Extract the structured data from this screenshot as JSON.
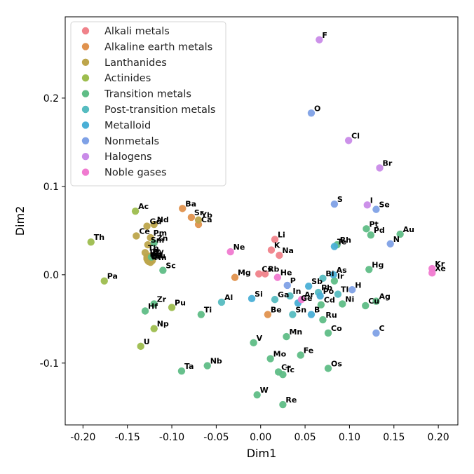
{
  "chart_data": {
    "type": "scatter",
    "xlabel": "Dim1",
    "ylabel": "Dim2",
    "xlim": [
      -0.22,
      0.222
    ],
    "ylim": [
      -0.17,
      0.292
    ],
    "xticks": [
      "-0.20",
      "-0.15",
      "-0.10",
      "-0.05",
      "0.00",
      "0.05",
      "0.10",
      "0.15",
      "0.20"
    ],
    "xtick_values": [
      -0.2,
      -0.15,
      -0.1,
      -0.05,
      0.0,
      0.05,
      0.1,
      0.15,
      0.2
    ],
    "yticks": [
      "-0.1",
      "0.0",
      "0.1",
      "0.2"
    ],
    "ytick_values": [
      -0.1,
      0.0,
      0.1,
      0.2
    ],
    "legend_position": "top-left",
    "series": [
      {
        "name": "Alkali metals",
        "color": "#f0828a",
        "points": [
          {
            "label": "Li",
            "x": 0.016,
            "y": 0.04
          },
          {
            "label": "Na",
            "x": 0.021,
            "y": 0.022
          },
          {
            "label": "K",
            "x": 0.012,
            "y": 0.028
          },
          {
            "label": "Rb",
            "x": 0.005,
            "y": 0.001
          },
          {
            "label": "Cs",
            "x": -0.002,
            "y": 0.001
          }
        ]
      },
      {
        "name": "Alkaline earth metals",
        "color": "#e0924e",
        "points": [
          {
            "label": "Be",
            "x": 0.008,
            "y": -0.045
          },
          {
            "label": "Mg",
            "x": -0.029,
            "y": -0.003
          },
          {
            "label": "Ca",
            "x": -0.07,
            "y": 0.057
          },
          {
            "label": "Sr",
            "x": -0.078,
            "y": 0.065
          },
          {
            "label": "Ba",
            "x": -0.088,
            "y": 0.075
          }
        ]
      },
      {
        "name": "Lanthanides",
        "color": "#bda54b",
        "points": [
          {
            "label": "La",
            "x": -0.127,
            "y": 0.016
          },
          {
            "label": "Ce",
            "x": -0.14,
            "y": 0.044
          },
          {
            "label": "Pr",
            "x": -0.128,
            "y": 0.02
          },
          {
            "label": "Nd",
            "x": -0.12,
            "y": 0.057
          },
          {
            "label": "Pm",
            "x": -0.124,
            "y": 0.042
          },
          {
            "label": "Sm",
            "x": -0.127,
            "y": 0.034
          },
          {
            "label": "Eu",
            "x": -0.125,
            "y": 0.018
          },
          {
            "label": "Gd",
            "x": -0.128,
            "y": 0.055
          },
          {
            "label": "Tb",
            "x": -0.13,
            "y": 0.025
          },
          {
            "label": "Dy",
            "x": -0.125,
            "y": 0.021
          },
          {
            "label": "Ho",
            "x": -0.128,
            "y": 0.018
          },
          {
            "label": "Er",
            "x": -0.126,
            "y": 0.015
          },
          {
            "label": "Tm",
            "x": -0.124,
            "y": 0.014
          },
          {
            "label": "Yb",
            "x": -0.07,
            "y": 0.062
          },
          {
            "label": "Lu",
            "x": -0.122,
            "y": 0.016
          }
        ]
      },
      {
        "name": "Actinides",
        "color": "#9dbd4e",
        "points": [
          {
            "label": "Ac",
            "x": -0.141,
            "y": 0.072
          },
          {
            "label": "Th",
            "x": -0.191,
            "y": 0.037
          },
          {
            "label": "Pa",
            "x": -0.176,
            "y": -0.007
          },
          {
            "label": "U",
            "x": -0.135,
            "y": -0.081
          },
          {
            "label": "Np",
            "x": -0.12,
            "y": -0.061
          },
          {
            "label": "Pu",
            "x": -0.1,
            "y": -0.037
          }
        ]
      },
      {
        "name": "Transition metals",
        "color": "#5fbd86",
        "points": [
          {
            "label": "Sc",
            "x": -0.11,
            "y": 0.005
          },
          {
            "label": "Ti",
            "x": -0.067,
            "y": -0.045
          },
          {
            "label": "V",
            "x": -0.008,
            "y": -0.077
          },
          {
            "label": "Cr",
            "x": 0.02,
            "y": -0.11
          },
          {
            "label": "Mn",
            "x": 0.029,
            "y": -0.07
          },
          {
            "label": "Fe",
            "x": 0.045,
            "y": -0.091
          },
          {
            "label": "Co",
            "x": 0.076,
            "y": -0.066
          },
          {
            "label": "Ni",
            "x": 0.092,
            "y": -0.033
          },
          {
            "label": "Cu",
            "x": 0.118,
            "y": -0.035
          },
          {
            "label": "Zn",
            "x": -0.12,
            "y": 0.036
          },
          {
            "label": "Y",
            "x": -0.123,
            "y": 0.02
          },
          {
            "label": "Zr",
            "x": -0.12,
            "y": -0.033
          },
          {
            "label": "Nb",
            "x": -0.06,
            "y": -0.103
          },
          {
            "label": "Mo",
            "x": 0.011,
            "y": -0.095
          },
          {
            "label": "Tc",
            "x": 0.025,
            "y": -0.113
          },
          {
            "label": "Ru",
            "x": 0.07,
            "y": -0.051
          },
          {
            "label": "Rh",
            "x": 0.086,
            "y": 0.034
          },
          {
            "label": "Pd",
            "x": 0.124,
            "y": 0.045
          },
          {
            "label": "Ag",
            "x": 0.13,
            "y": -0.03
          },
          {
            "label": "Cd",
            "x": 0.068,
            "y": -0.034
          },
          {
            "label": "Hf",
            "x": -0.13,
            "y": -0.041
          },
          {
            "label": "Ta",
            "x": -0.089,
            "y": -0.109
          },
          {
            "label": "W",
            "x": -0.004,
            "y": -0.136
          },
          {
            "label": "Re",
            "x": 0.025,
            "y": -0.147
          },
          {
            "label": "Os",
            "x": 0.076,
            "y": -0.106
          },
          {
            "label": "Ir",
            "x": 0.083,
            "y": -0.007
          },
          {
            "label": "Pt",
            "x": 0.119,
            "y": 0.052
          },
          {
            "label": "Au",
            "x": 0.157,
            "y": 0.046
          },
          {
            "label": "Hg",
            "x": 0.122,
            "y": 0.006
          }
        ]
      },
      {
        "name": "Post-transition metals",
        "color": "#56bcc0",
        "points": [
          {
            "label": "Al",
            "x": -0.044,
            "y": -0.031
          },
          {
            "label": "Ga",
            "x": 0.016,
            "y": -0.028
          },
          {
            "label": "In",
            "x": 0.033,
            "y": -0.024
          },
          {
            "label": "Sn",
            "x": 0.036,
            "y": -0.045
          },
          {
            "label": "Tl",
            "x": 0.087,
            "y": -0.022
          },
          {
            "label": "Pb",
            "x": 0.065,
            "y": -0.02
          },
          {
            "label": "Bi",
            "x": 0.07,
            "y": -0.004
          }
        ]
      },
      {
        "name": "Metalloid",
        "color": "#4aafd6",
        "points": [
          {
            "label": "B",
            "x": 0.057,
            "y": -0.045
          },
          {
            "label": "Si",
            "x": -0.01,
            "y": -0.027
          },
          {
            "label": "Ge",
            "x": 0.042,
            "y": -0.032
          },
          {
            "label": "As",
            "x": 0.082,
            "y": 0.0
          },
          {
            "label": "Sb",
            "x": 0.054,
            "y": -0.013
          },
          {
            "label": "Te",
            "x": 0.083,
            "y": 0.032
          },
          {
            "label": "Po",
            "x": 0.067,
            "y": -0.024
          }
        ]
      },
      {
        "name": "Nonmetals",
        "color": "#7fa1e6",
        "points": [
          {
            "label": "H",
            "x": 0.103,
            "y": -0.017
          },
          {
            "label": "C",
            "x": 0.13,
            "y": -0.066
          },
          {
            "label": "N",
            "x": 0.146,
            "y": 0.035
          },
          {
            "label": "O",
            "x": 0.057,
            "y": 0.183
          },
          {
            "label": "P",
            "x": 0.03,
            "y": -0.012
          },
          {
            "label": "S",
            "x": 0.083,
            "y": 0.08
          },
          {
            "label": "Se",
            "x": 0.13,
            "y": 0.074
          }
        ]
      },
      {
        "name": "Halogens",
        "color": "#c98be8",
        "points": [
          {
            "label": "F",
            "x": 0.066,
            "y": 0.266
          },
          {
            "label": "Cl",
            "x": 0.099,
            "y": 0.152
          },
          {
            "label": "Br",
            "x": 0.134,
            "y": 0.121
          },
          {
            "label": "I",
            "x": 0.12,
            "y": 0.079
          }
        ]
      },
      {
        "name": "Noble gases",
        "color": "#f07ad0",
        "points": [
          {
            "label": "He",
            "x": 0.019,
            "y": -0.003
          },
          {
            "label": "Ne",
            "x": -0.034,
            "y": 0.026
          },
          {
            "label": "Ar",
            "x": 0.046,
            "y": -0.028
          },
          {
            "label": "Kr",
            "x": 0.193,
            "y": 0.007
          },
          {
            "label": "Xe",
            "x": 0.193,
            "y": 0.002
          }
        ]
      }
    ]
  }
}
